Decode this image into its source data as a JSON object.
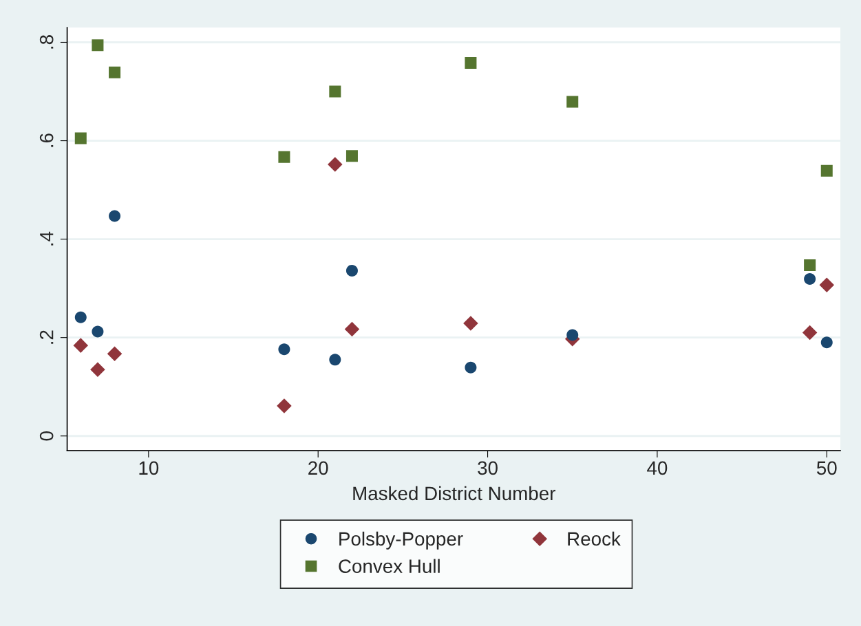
{
  "chart_data": {
    "type": "scatter",
    "xlabel": "Masked District Number",
    "x": [
      6,
      7,
      8,
      18,
      21,
      22,
      29,
      35,
      49,
      50
    ],
    "series": [
      {
        "name": "Polsby-Popper",
        "color": "#1a476f",
        "marker": "circle",
        "values": [
          0.241,
          0.212,
          0.447,
          0.176,
          0.155,
          0.336,
          0.139,
          0.205,
          0.319,
          0.19
        ]
      },
      {
        "name": "Reock",
        "color": "#90353b",
        "marker": "diamond",
        "values": [
          0.184,
          0.135,
          0.167,
          0.061,
          0.552,
          0.217,
          0.229,
          0.197,
          0.21,
          0.307
        ]
      },
      {
        "name": "Convex Hull",
        "color": "#55752f",
        "marker": "square",
        "values": [
          0.605,
          0.794,
          0.739,
          0.567,
          0.7,
          0.569,
          0.758,
          0.679,
          0.347,
          0.539
        ]
      }
    ],
    "xlim": [
      5.2,
      50.8
    ],
    "xticks": [
      10,
      20,
      30,
      40,
      50
    ],
    "ylim": [
      -0.03,
      0.83
    ],
    "yticks": [
      0,
      {
        "value": 0.2,
        "label": ".2"
      },
      {
        "value": 0.4,
        "label": ".4"
      },
      {
        "value": 0.6,
        "label": ".6"
      },
      {
        "value": 0.8,
        "label": ".8"
      }
    ],
    "grid": "y",
    "legend": "bottom"
  }
}
